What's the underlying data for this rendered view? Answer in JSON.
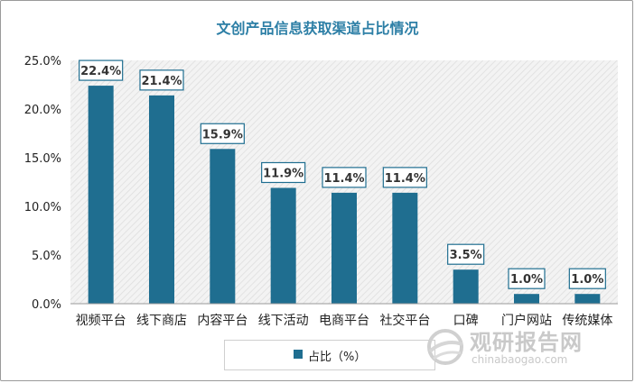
{
  "chart_data": {
    "type": "bar",
    "title": "文创产品信息获取渠道占比情况",
    "categories": [
      "视频平台",
      "线下商店",
      "内容平台",
      "线下活动",
      "电商平台",
      "社交平台",
      "口碑",
      "门户网站",
      "传统媒体"
    ],
    "values": [
      22.4,
      21.4,
      15.9,
      11.9,
      11.4,
      11.4,
      3.5,
      1.0,
      1.0
    ],
    "data_labels": [
      "22.4%",
      "21.4%",
      "15.9%",
      "11.9%",
      "11.4%",
      "11.4%",
      "3.5%",
      "1.0%",
      "1.0%"
    ],
    "series": [
      {
        "name": "占比（%）",
        "values": [
          22.4,
          21.4,
          15.9,
          11.9,
          11.4,
          11.4,
          3.5,
          1.0,
          1.0
        ]
      }
    ],
    "ylim": [
      0,
      25
    ],
    "y_ticks": [
      0,
      5,
      10,
      15,
      20,
      25
    ],
    "y_tick_labels": [
      "0.0%",
      "5.0%",
      "10.0%",
      "15.0%",
      "20.0%",
      "25.0%"
    ],
    "legend_position": "bottom",
    "bar_color": "#1f6e90",
    "plot_background": "hatched-gray",
    "grid": false
  },
  "watermark": {
    "name_cn": "观研报告网",
    "url": "chinabaogao.com",
    "icon": "globe-logo-icon"
  }
}
